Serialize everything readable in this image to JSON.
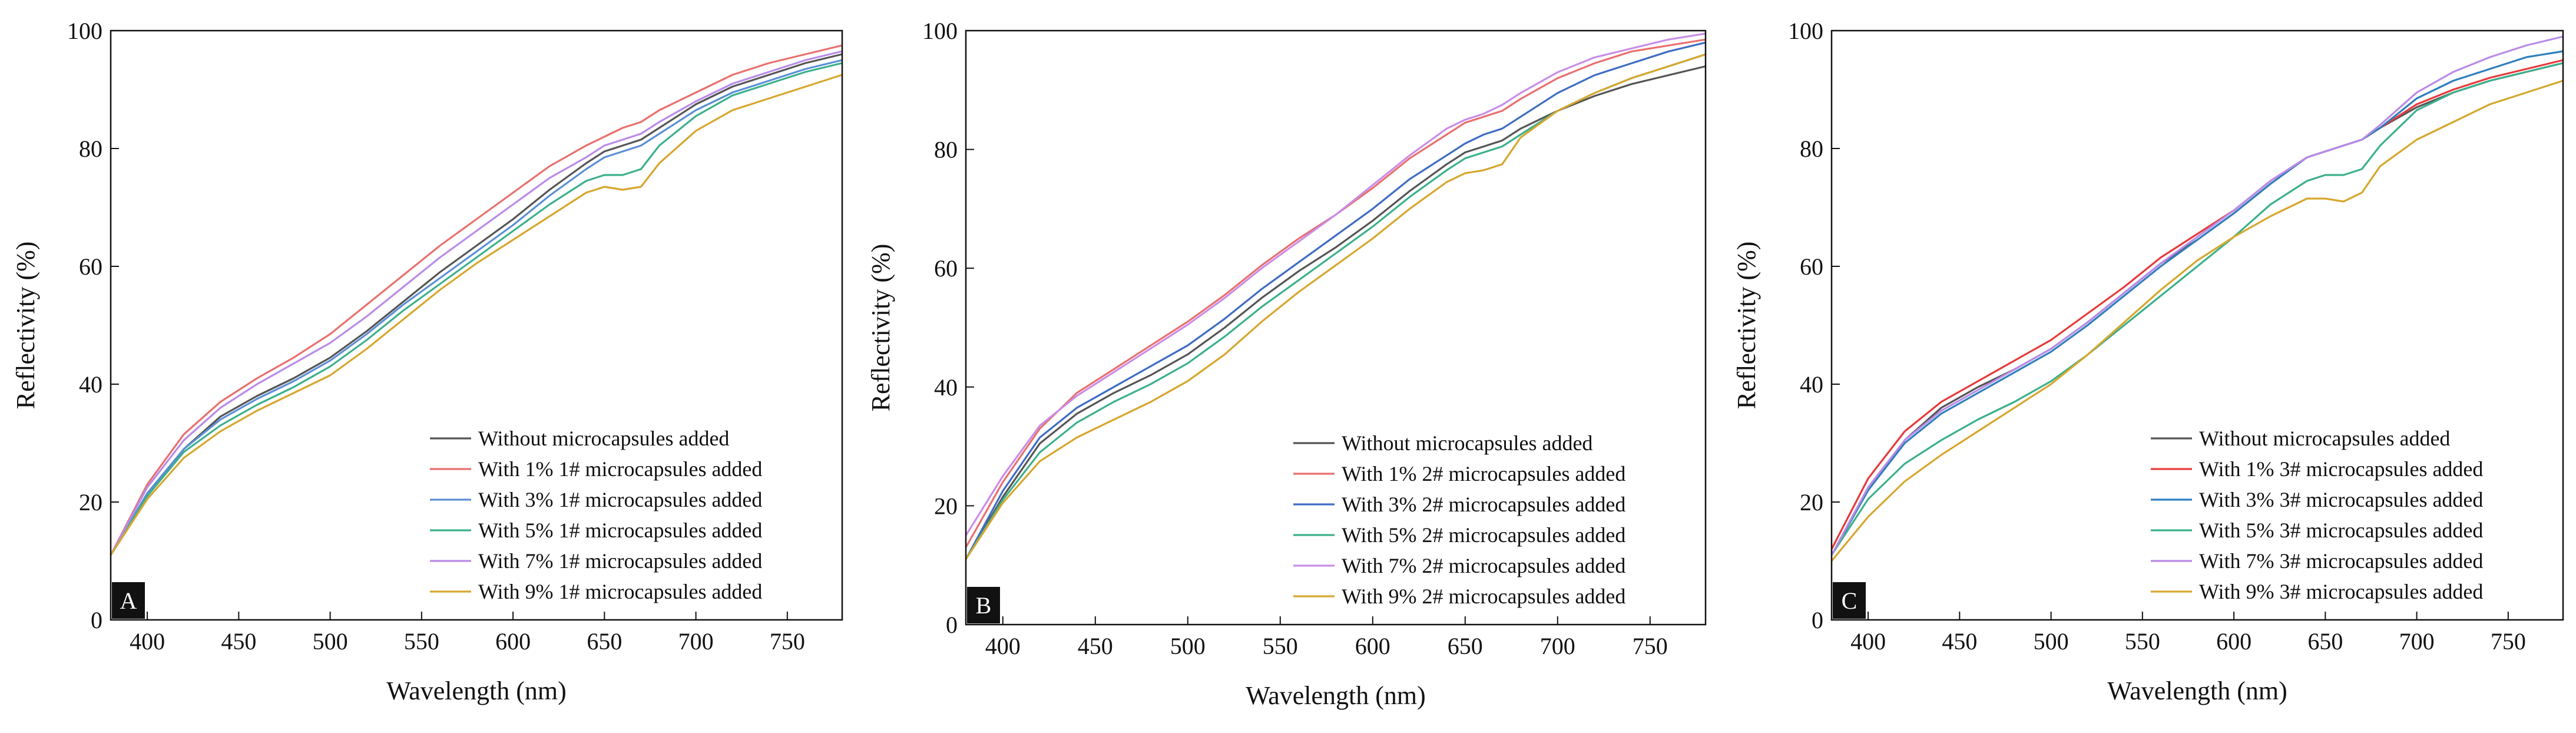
{
  "chart_data": [
    {
      "type": "line",
      "panel_label": "A",
      "xlabel": "Wavelength (nm)",
      "ylabel": "Reflectivity (%)",
      "xlim": [
        380,
        780
      ],
      "ylim": [
        0,
        100
      ],
      "x_ticks": [
        400,
        450,
        500,
        550,
        600,
        650,
        700,
        750
      ],
      "y_ticks": [
        0,
        20,
        40,
        60,
        80,
        100
      ],
      "legend_position": "bottom-right",
      "x": [
        380,
        400,
        420,
        440,
        460,
        480,
        500,
        520,
        540,
        560,
        580,
        600,
        620,
        640,
        650,
        660,
        670,
        680,
        700,
        720,
        740,
        760,
        780
      ],
      "series": [
        {
          "name": "Without microcapsules added",
          "color": "#555555",
          "values": [
            11,
            21,
            29,
            34.5,
            38,
            41,
            44.5,
            49,
            54,
            59,
            63.5,
            68,
            73,
            77.5,
            79.5,
            80.5,
            81.5,
            83.5,
            87.5,
            90.5,
            92.5,
            94.5,
            96
          ]
        },
        {
          "name": "With 1% 1# microcapsules added",
          "color": "#e8706e",
          "values": [
            11,
            23,
            31.5,
            37,
            41,
            44.5,
            48.5,
            53.5,
            58.5,
            63.5,
            68,
            72.5,
            77,
            80.5,
            82,
            83.5,
            84.5,
            86.5,
            89.5,
            92.5,
            94.5,
            96,
            97.5
          ]
        },
        {
          "name": "With 3% 1# microcapsules added",
          "color": "#5b8fd6",
          "values": [
            11,
            21.5,
            29,
            34,
            37.5,
            40.5,
            44,
            48.5,
            53.5,
            58,
            62.5,
            67,
            72,
            76.5,
            78.5,
            79.5,
            80.5,
            82.5,
            86.5,
            89.5,
            91.5,
            93.5,
            95
          ]
        },
        {
          "name": "With 5% 1# microcapsules added",
          "color": "#3cb08c",
          "values": [
            11,
            21,
            28.5,
            33,
            36.5,
            39.5,
            43,
            47.5,
            52.5,
            57,
            61.5,
            66,
            70.5,
            74.5,
            75.5,
            75.5,
            76.5,
            80.5,
            85.5,
            89,
            91,
            93,
            94.5
          ]
        },
        {
          "name": "With 7% 1# microcapsules added",
          "color": "#b98be8",
          "values": [
            11,
            22.5,
            30.5,
            36,
            40,
            43.5,
            47,
            51.5,
            56.5,
            61.5,
            66,
            70.5,
            75,
            78.5,
            80.5,
            81.5,
            82.5,
            84.5,
            88,
            91,
            93,
            95,
            96.5
          ]
        },
        {
          "name": "With 9% 1# microcapsules added",
          "color": "#d6a72e",
          "values": [
            11,
            20.5,
            27.5,
            32,
            35.5,
            38.5,
            41.5,
            46,
            51,
            56,
            60.5,
            64.5,
            68.5,
            72.5,
            73.5,
            73,
            73.5,
            77.5,
            83,
            86.5,
            88.5,
            90.5,
            92.5
          ]
        }
      ]
    },
    {
      "type": "line",
      "panel_label": "B",
      "xlabel": "Wavelength (nm)",
      "ylabel": "Reflectivity (%)",
      "xlim": [
        380,
        780
      ],
      "ylim": [
        0,
        100
      ],
      "x_ticks": [
        400,
        450,
        500,
        550,
        600,
        650,
        700,
        750
      ],
      "y_ticks": [
        0,
        20,
        40,
        60,
        80,
        100
      ],
      "legend_position": "bottom-right",
      "x": [
        380,
        400,
        420,
        440,
        460,
        480,
        500,
        520,
        540,
        560,
        580,
        600,
        620,
        640,
        650,
        660,
        670,
        680,
        700,
        720,
        740,
        760,
        780
      ],
      "series": [
        {
          "name": "Without microcapsules added",
          "color": "#555555",
          "values": [
            11,
            21.5,
            30.5,
            35.5,
            39,
            42,
            45.5,
            50,
            55,
            59.5,
            63.5,
            68,
            73,
            77.5,
            79.5,
            80.5,
            81.5,
            83.5,
            86.5,
            89,
            91,
            92.5,
            94
          ]
        },
        {
          "name": "With 1% 2# microcapsules added",
          "color": "#e8706e",
          "values": [
            13,
            24,
            33,
            39,
            43,
            47,
            51,
            55.5,
            60.5,
            65,
            69,
            73.5,
            78.5,
            82.5,
            84.5,
            85.5,
            86.5,
            88.5,
            92,
            94.5,
            96.5,
            97.5,
            98.5
          ]
        },
        {
          "name": "With 3% 2# microcapsules added",
          "color": "#3f6cc4",
          "values": [
            11,
            22.5,
            31.5,
            36.5,
            40,
            43.5,
            47,
            51.5,
            56.5,
            61,
            65.5,
            70,
            75,
            79,
            81,
            82.5,
            83.5,
            85.5,
            89.5,
            92.5,
            94.5,
            96.5,
            98
          ]
        },
        {
          "name": "With 5% 2# microcapsules added",
          "color": "#3cb08c",
          "values": [
            11,
            21,
            29,
            34,
            37.5,
            40.5,
            44,
            48.5,
            53.5,
            58,
            62.5,
            67,
            72,
            76.5,
            78.5,
            79.5,
            80.5,
            82.5,
            86.5,
            89.5,
            92,
            94,
            96
          ]
        },
        {
          "name": "With 7% 2# microcapsules added",
          "color": "#c98de8",
          "values": [
            15,
            25,
            33.5,
            38.5,
            42.5,
            46.5,
            50.5,
            55,
            60,
            64.5,
            69,
            74,
            79,
            83.5,
            85,
            86,
            87.5,
            89.5,
            93,
            95.5,
            97,
            98.5,
            99.5
          ]
        },
        {
          "name": "With 9% 2# microcapsules added",
          "color": "#d6a72e",
          "values": [
            11,
            20.5,
            27.5,
            31.5,
            34.5,
            37.5,
            41,
            45.5,
            51,
            56,
            60.5,
            65,
            70,
            74.5,
            76,
            76.5,
            77.5,
            82,
            86.5,
            89.5,
            92,
            94,
            96
          ]
        }
      ]
    },
    {
      "type": "line",
      "panel_label": "C",
      "xlabel": "Wavelength (nm)",
      "ylabel": "Reflectivity (%)",
      "xlim": [
        380,
        780
      ],
      "ylim": [
        0,
        100
      ],
      "x_ticks": [
        400,
        450,
        500,
        550,
        600,
        650,
        700,
        750
      ],
      "y_ticks": [
        0,
        20,
        40,
        60,
        80,
        100
      ],
      "legend_position": "bottom-right",
      "x": [
        380,
        400,
        420,
        440,
        460,
        480,
        500,
        520,
        540,
        560,
        580,
        600,
        620,
        640,
        650,
        660,
        670,
        680,
        700,
        720,
        740,
        760,
        780
      ],
      "series": [
        {
          "name": "Without microcapsules added",
          "color": "#555555",
          "values": [
            11,
            22,
            30.5,
            36,
            39.5,
            42.5,
            46,
            50.5,
            55.5,
            60.5,
            64.5,
            69,
            74,
            78.5,
            79.5,
            80.5,
            81.5,
            83.5,
            87,
            89.5,
            91.5,
            93,
            94.5
          ]
        },
        {
          "name": "With 1% 3# microcapsules added",
          "color": "#e63a3a",
          "values": [
            12,
            24,
            32,
            37,
            40.5,
            44,
            47.5,
            52,
            56.5,
            61.5,
            65.5,
            69.5,
            74.5,
            78.5,
            79.5,
            80.5,
            81.5,
            83.5,
            87.5,
            90,
            92,
            93.5,
            95
          ]
        },
        {
          "name": "With 3% 3# microcapsules added",
          "color": "#2f7fbf",
          "values": [
            11,
            22,
            30,
            35,
            38.5,
            42,
            45.5,
            50,
            55,
            60,
            64.5,
            69,
            74,
            78.5,
            79.5,
            80.5,
            81.5,
            83.5,
            88.5,
            91.5,
            93.5,
            95.5,
            96.5
          ]
        },
        {
          "name": "With 5% 3# microcapsules added",
          "color": "#3cb08c",
          "values": [
            11,
            20.5,
            26.5,
            30.5,
            34,
            37,
            40.5,
            45,
            50,
            55,
            60,
            65,
            70.5,
            74.5,
            75.5,
            75.5,
            76.5,
            80.5,
            86.5,
            89.5,
            91.5,
            93,
            94.5
          ]
        },
        {
          "name": "With 7% 3# microcapsules added",
          "color": "#b98be8",
          "values": [
            11,
            22.5,
            30.5,
            35.5,
            39,
            42.5,
            46,
            50.5,
            55.5,
            60.5,
            65,
            69.5,
            74.5,
            78.5,
            79.5,
            80.5,
            81.5,
            84,
            89.5,
            93,
            95.5,
            97.5,
            99
          ]
        },
        {
          "name": "With 9% 3# microcapsules added",
          "color": "#d6a72e",
          "values": [
            10,
            17.5,
            23.5,
            28,
            32,
            36,
            40,
            45,
            50.5,
            56,
            61,
            65,
            68.5,
            71.5,
            71.5,
            71,
            72.5,
            77,
            81.5,
            84.5,
            87.5,
            89.5,
            91.5
          ]
        }
      ]
    }
  ]
}
